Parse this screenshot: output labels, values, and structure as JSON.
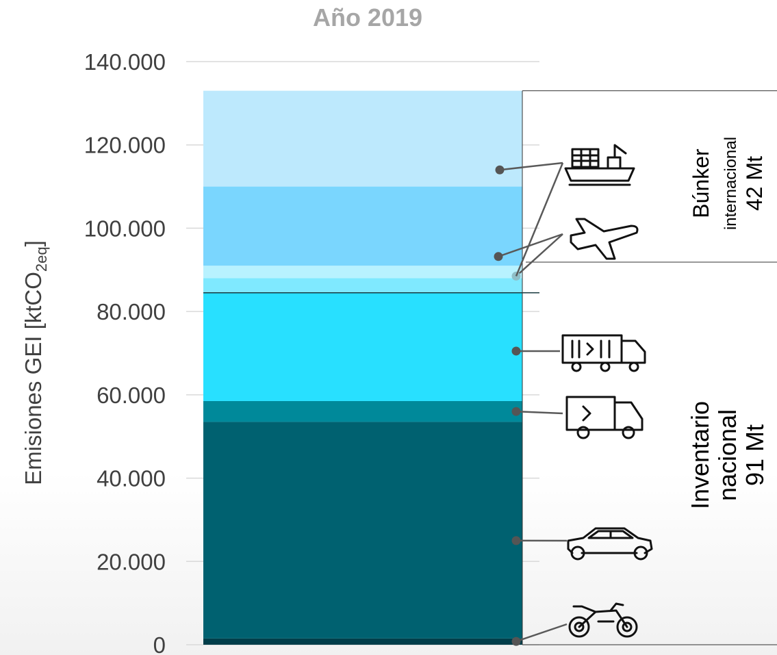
{
  "chart_data": {
    "type": "bar",
    "stacked": true,
    "title": "Año 2019",
    "ylabel": {
      "main": "Emisiones GEI [ktCO",
      "sub": "2eq",
      "close": "]"
    },
    "ylim": [
      0,
      140000
    ],
    "yticks": [
      {
        "value": 0,
        "label": "0"
      },
      {
        "value": 20000,
        "label": "20.000"
      },
      {
        "value": 40000,
        "label": "40.000"
      },
      {
        "value": 60000,
        "label": "60.000"
      },
      {
        "value": 80000,
        "label": "80.000"
      },
      {
        "value": 100000,
        "label": "100.000"
      },
      {
        "value": 120000,
        "label": "120.000"
      },
      {
        "value": 140000,
        "label": "140.000"
      }
    ],
    "grid": true,
    "segments": [
      {
        "icon": "motorcycle-icon",
        "value": 1500,
        "color": "#013e4a",
        "dot": 800
      },
      {
        "icon": "car-icon",
        "value": 52000,
        "color": "#006170",
        "dot": 25000
      },
      {
        "icon": "van-icon",
        "value": 5000,
        "color": "#00899a",
        "dot": 56000
      },
      {
        "icon": "truck-icon",
        "value": 26000,
        "color": "#28e0ff",
        "dot": 70500
      },
      {
        "icon": "plane-icon",
        "value": 3500,
        "color": "#7fe9ff",
        "dot": 88500
      },
      {
        "icon": "plane-icon",
        "value": 3000,
        "color": "#b8f2ff",
        "dot": 88500
      },
      {
        "icon": "plane-icon",
        "value": 19000,
        "color": "#7ad6fe",
        "dot": 93200
      },
      {
        "icon": "ship-icon",
        "value": 23000,
        "color": "#bde9fd",
        "dot": 114000
      }
    ],
    "national_boundary": 84500,
    "groups": [
      {
        "name_lines": [
          "Búnker"
        ],
        "sub_lines": [
          "internacional"
        ],
        "value_text": "42 Mt"
      },
      {
        "name_lines": [
          "Inventario",
          "nacional"
        ],
        "sub_lines": [],
        "value_text": "91 Mt"
      }
    ],
    "colors": {
      "title": "#a6a6a6",
      "axis_text": "#404040",
      "grid": "#d9d9d9",
      "leader": "#595959"
    }
  }
}
